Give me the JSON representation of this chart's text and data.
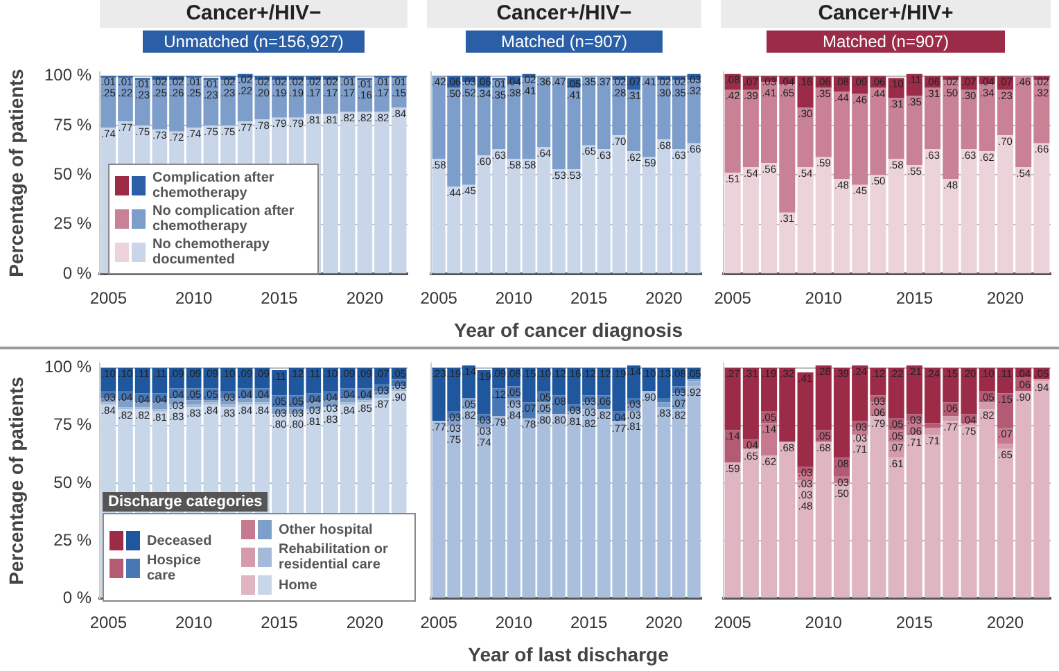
{
  "chart_data": [
    {
      "type": "bar",
      "stacked": true,
      "title": "Cancer+/HIV−",
      "subtitle": "Unmatched (n=156,927)",
      "ylabel": "Percentage of patients",
      "categories": [
        "2005",
        null,
        null,
        null,
        null,
        "2010",
        null,
        null,
        null,
        null,
        "2015",
        null,
        null,
        null,
        null,
        "2020",
        null,
        null
      ],
      "ylim": [
        0,
        1.02
      ],
      "yticks": [
        {
          "value": 0,
          "label": "0 %"
        },
        {
          "value": 0.25,
          "label": "25 %"
        },
        {
          "value": 0.5,
          "label": "50 %"
        },
        {
          "value": 0.75,
          "label": "75 %"
        },
        {
          "value": 1,
          "label": "100 %"
        }
      ],
      "grid": "y",
      "legend": "left",
      "series": [
        {
          "name": "No chemotherapy documented",
          "color": "#c9d6ea",
          "values": [
            0.74,
            0.77,
            0.75,
            0.73,
            0.72,
            0.74,
            0.75,
            0.75,
            0.77,
            0.78,
            0.79,
            0.79,
            0.81,
            0.81,
            0.82,
            0.82,
            0.82,
            0.84
          ],
          "value_labels": [
            ".74",
            ".77",
            ".75",
            ".73",
            ".72",
            ".74",
            ".75",
            ".75",
            ".77",
            ".78",
            ".79",
            ".79",
            ".81",
            ".81",
            ".82",
            ".82",
            ".82",
            ".84"
          ]
        },
        {
          "name": "No complication after chemotherapy",
          "color": "#7d9dca",
          "values": [
            0.25,
            0.22,
            0.23,
            0.25,
            0.26,
            0.25,
            0.23,
            0.23,
            0.22,
            0.2,
            0.19,
            0.19,
            0.17,
            0.17,
            0.17,
            0.16,
            0.17,
            0.15
          ],
          "value_labels": [
            ".25",
            ".22",
            ".23",
            ".25",
            ".26",
            ".25",
            ".23",
            ".23",
            ".22",
            ".20",
            ".19",
            ".19",
            ".17",
            ".17",
            ".17",
            ".16",
            ".17",
            ".15"
          ]
        },
        {
          "name": "Complication after chemotherapy",
          "color": "#2a5ea6",
          "values": [
            0.01,
            0.01,
            0.01,
            0.02,
            0.02,
            0.01,
            0.01,
            0.02,
            0.02,
            0.02,
            0.02,
            0.02,
            0.02,
            0.02,
            0.01,
            0.01,
            0.01,
            0.01
          ],
          "value_labels": [
            ".01",
            ".01",
            ".01",
            ".02",
            ".02",
            ".01",
            ".01",
            ".02",
            ".02",
            ".02",
            ".02",
            ".02",
            ".02",
            ".02",
            ".01",
            ".01",
            ".01",
            ".01"
          ]
        }
      ]
    },
    {
      "type": "bar",
      "stacked": true,
      "title": "Cancer+/HIV−",
      "subtitle": "Matched (n=907)",
      "xlabel": "Year of cancer diagnosis",
      "categories": [
        "2005",
        null,
        null,
        null,
        null,
        "2010",
        null,
        null,
        null,
        null,
        "2015",
        null,
        null,
        null,
        null,
        "2020",
        null,
        null
      ],
      "ylim": [
        0,
        1.02
      ],
      "yticks": [
        {
          "value": 0,
          "label": null
        },
        {
          "value": 0.25,
          "label": null
        },
        {
          "value": 0.5,
          "label": null
        },
        {
          "value": 0.75,
          "label": null
        },
        {
          "value": 1,
          "label": null
        }
      ],
      "grid": "y",
      "tick_labels": "x",
      "series": [
        {
          "color": "#c9d6ea",
          "values": [
            0.58,
            0.44,
            0.45,
            0.6,
            0.63,
            0.58,
            0.58,
            0.64,
            0.53,
            0.53,
            0.65,
            0.63,
            0.7,
            0.62,
            0.59,
            0.68,
            0.63,
            0.66
          ],
          "value_labels": [
            ".58",
            ".44",
            ".45",
            ".60",
            ".63",
            ".58",
            ".58",
            ".64",
            ".53",
            ".53",
            ".65",
            ".63",
            ".70",
            ".62",
            ".59",
            ".68",
            ".63",
            ".66"
          ]
        },
        {
          "color": "#7d9dca",
          "values": [
            0.42,
            0.5,
            0.52,
            0.34,
            0.35,
            0.38,
            0.41,
            0.36,
            0.47,
            0.41,
            0.35,
            0.37,
            0.28,
            0.31,
            0.41,
            0.3,
            0.35,
            0.32
          ],
          "value_labels": [
            ".42",
            ".50",
            ".52",
            ".34",
            ".35",
            ".38",
            ".41",
            ".36",
            ".47",
            ".41",
            ".35",
            ".37",
            ".28",
            ".31",
            ".41",
            ".30",
            ".35",
            ".32"
          ]
        },
        {
          "color": "#2a5ea6",
          "values": [
            0,
            0.06,
            0.03,
            0.06,
            0.01,
            0.04,
            0.02,
            0,
            0,
            0.05,
            0,
            0,
            0.02,
            0.07,
            0,
            0.02,
            0.02,
            0.03
          ],
          "value_labels": [
            null,
            ".06",
            ".03",
            ".06",
            ".01",
            ".04",
            ".02",
            null,
            null,
            ".05",
            null,
            null,
            ".02",
            ".07",
            null,
            ".02",
            ".02",
            ".03"
          ]
        }
      ]
    },
    {
      "type": "bar",
      "stacked": true,
      "title": "Cancer+/HIV+",
      "subtitle": "Matched (n=907)",
      "categories": [
        "2005",
        null,
        null,
        null,
        null,
        "2010",
        null,
        null,
        null,
        null,
        "2015",
        null,
        null,
        null,
        null,
        "2020",
        null,
        null
      ],
      "ylim": [
        0,
        1.02
      ],
      "yticks": [
        {
          "value": 0,
          "label": null
        },
        {
          "value": 0.25,
          "label": null
        },
        {
          "value": 0.5,
          "label": null
        },
        {
          "value": 0.75,
          "label": null
        },
        {
          "value": 1,
          "label": null
        }
      ],
      "grid": "y",
      "tick_labels": "x",
      "series": [
        {
          "color": "#ecd3da",
          "values": [
            0.51,
            0.54,
            0.56,
            0.31,
            0.54,
            0.59,
            0.48,
            0.45,
            0.5,
            0.58,
            0.55,
            0.63,
            0.48,
            0.63,
            0.62,
            0.7,
            0.54,
            0.66
          ],
          "value_labels": [
            ".51",
            ".54",
            ".56",
            ".31",
            ".54",
            ".59",
            ".48",
            ".45",
            ".50",
            ".58",
            ".55",
            ".63",
            ".48",
            ".63",
            ".62",
            ".70",
            ".54",
            ".66"
          ]
        },
        {
          "color": "#c98196",
          "values": [
            0.42,
            0.39,
            0.41,
            0.65,
            0.3,
            0.35,
            0.44,
            0.46,
            0.44,
            0.31,
            0.35,
            0.31,
            0.5,
            0.3,
            0.34,
            0.23,
            0.46,
            0.32
          ],
          "value_labels": [
            ".42",
            ".39",
            ".41",
            ".65",
            ".30",
            ".35",
            ".44",
            ".46",
            ".44",
            ".31",
            ".35",
            ".31",
            ".50",
            ".30",
            ".34",
            ".23",
            ".46",
            ".32"
          ]
        },
        {
          "color": "#9c2b48",
          "values": [
            0.08,
            0.07,
            0.03,
            0.04,
            0.16,
            0.06,
            0.08,
            0.09,
            0.06,
            0.1,
            0.11,
            0.06,
            0.02,
            0.07,
            0.04,
            0.07,
            0,
            0.02
          ],
          "value_labels": [
            ".08",
            ".07",
            ".03",
            ".04",
            ".16",
            ".06",
            ".08",
            ".09",
            ".06",
            ".10",
            ".11",
            ".06",
            ".02",
            ".07",
            ".04",
            ".07",
            null,
            ".02"
          ]
        }
      ]
    },
    {
      "type": "bar",
      "stacked": true,
      "ylabel": "Percentage of patients",
      "legend_title": "Discharge categories",
      "categories": [
        "2005",
        null,
        null,
        null,
        null,
        "2010",
        null,
        null,
        null,
        null,
        "2015",
        null,
        null,
        null,
        null,
        "2020",
        null,
        null
      ],
      "ylim": [
        0,
        1.02
      ],
      "yticks": [
        {
          "value": 0,
          "label": "0 %"
        },
        {
          "value": 0.25,
          "label": "25 %"
        },
        {
          "value": 0.5,
          "label": "50 %"
        },
        {
          "value": 0.75,
          "label": "75 %"
        },
        {
          "value": 1,
          "label": "100 %"
        }
      ],
      "grid": "y",
      "legend": "bottom",
      "series": [
        {
          "name": "Home",
          "color": "#c8d6ea",
          "values": [
            0.84,
            0.82,
            0.82,
            0.81,
            0.83,
            0.83,
            0.84,
            0.83,
            0.84,
            0.84,
            0.8,
            0.8,
            0.81,
            0.83,
            0.84,
            0.85,
            0.87,
            0.9
          ],
          "value_labels": [
            ".84",
            ".82",
            ".82",
            ".81",
            ".83",
            ".83",
            ".84",
            ".83",
            ".84",
            ".84",
            ".80",
            ".80",
            ".81",
            ".83",
            ".84",
            ".85",
            ".87",
            ".90"
          ]
        },
        {
          "name": "Rehabilitation or residential care",
          "color": "#a3bad9",
          "values": [
            0.01,
            0.01,
            0.01,
            0.01,
            0.01,
            0.01,
            0.01,
            0.01,
            0.01,
            0.01,
            null,
            0,
            0.01,
            0,
            0.01,
            0.01,
            0.01,
            0.01
          ],
          "value_labels": [
            null,
            null,
            null,
            null,
            null,
            null,
            null,
            null,
            null,
            null,
            null,
            null,
            null,
            null,
            null,
            null,
            null,
            null
          ]
        },
        {
          "name": "Other hospital",
          "color": "#7f9fcb",
          "values": [
            0.02,
            0.03,
            0.02,
            0.03,
            0.03,
            0.02,
            0.01,
            0.03,
            0.02,
            0.02,
            0.03,
            0.03,
            0.03,
            0.03,
            0.02,
            0.01,
            0.02,
            0.01
          ],
          "value_labels": [
            null,
            null,
            null,
            null,
            ".03",
            null,
            null,
            null,
            null,
            null,
            ".03",
            ".03",
            ".03",
            ".03",
            null,
            null,
            null,
            null
          ]
        },
        {
          "name": "Hospice care",
          "color": "#4877b6",
          "values": [
            0.03,
            0.04,
            0.04,
            0.04,
            0.04,
            0.05,
            0.05,
            0.03,
            0.04,
            0.04,
            0.05,
            0.05,
            0.04,
            0.04,
            0.04,
            0.04,
            0.03,
            0.03
          ],
          "value_labels": [
            ".03",
            ".04",
            ".04",
            ".04",
            ".04",
            ".05",
            ".05",
            ".03",
            ".04",
            ".04",
            ".05",
            ".05",
            ".04",
            ".04",
            ".04",
            ".04",
            ".03",
            ".03"
          ]
        },
        {
          "name": "Deceased",
          "color": "#1f579f",
          "values": [
            0.1,
            0.1,
            0.11,
            0.11,
            0.09,
            0.09,
            0.09,
            0.1,
            0.09,
            0.09,
            0.11,
            0.12,
            0.11,
            0.1,
            0.09,
            0.09,
            0.07,
            0.05
          ],
          "value_labels": [
            ".10",
            ".10",
            ".11",
            ".11",
            ".09",
            ".09",
            ".09",
            ".10",
            ".09",
            ".09",
            ".11",
            ".12",
            ".11",
            ".10",
            ".09",
            ".09",
            ".07",
            ".05"
          ]
        }
      ]
    },
    {
      "type": "bar",
      "stacked": true,
      "xlabel": "Year of last discharge",
      "categories": [
        "2005",
        null,
        null,
        null,
        null,
        "2010",
        null,
        null,
        null,
        null,
        "2015",
        null,
        null,
        null,
        null,
        "2020",
        null,
        null
      ],
      "ylim": [
        0,
        1.02
      ],
      "yticks": [
        {
          "value": 0,
          "label": null
        },
        {
          "value": 0.25,
          "label": null
        },
        {
          "value": 0.5,
          "label": null
        },
        {
          "value": 0.75,
          "label": null
        },
        {
          "value": 1,
          "label": null
        }
      ],
      "grid": "y",
      "tick_labels": "x",
      "series": [
        {
          "color": "#aabfdd",
          "values": [
            0.77,
            0.75,
            0.82,
            0.74,
            0.79,
            0.84,
            0.78,
            0.8,
            0.8,
            0.81,
            0.82,
            0.82,
            0.77,
            0.81,
            0.9,
            0.83,
            0.82,
            0.92
          ],
          "value_labels": [
            ".77",
            ".75",
            ".82",
            ".74",
            ".79",
            ".84",
            ".78",
            ".80",
            ".80",
            ".81",
            ".82",
            ".82",
            ".77",
            ".81",
            ".90",
            ".83",
            ".82",
            ".92"
          ]
        },
        {
          "color": "#98b1d5",
          "values": [
            0,
            0,
            0,
            null,
            0,
            0,
            0,
            0,
            0,
            0,
            0,
            0,
            0,
            0,
            0,
            0,
            0,
            0.02
          ],
          "value_labels": [
            null,
            null,
            null,
            null,
            null,
            null,
            null,
            null,
            null,
            null,
            null,
            null,
            null,
            null,
            null,
            null,
            null,
            null
          ]
        },
        {
          "color": "#7f9fcb",
          "values": [
            0,
            0.03,
            0.05,
            0.03,
            0,
            0.03,
            0,
            0.05,
            0,
            0,
            0.03,
            0,
            0,
            0.03,
            0,
            0.02,
            0.07,
            0.01
          ],
          "value_labels": [
            null,
            ".03",
            ".05",
            ".03",
            null,
            ".03",
            null,
            ".05",
            null,
            null,
            ".03",
            null,
            null,
            ".03",
            null,
            null,
            ".07",
            null
          ]
        },
        {
          "color": "#4877b6",
          "values": [
            0,
            0.03,
            0,
            0.03,
            0.12,
            0.05,
            0.07,
            0.05,
            0.08,
            0.03,
            0.03,
            0.06,
            0.04,
            0.03,
            0,
            0.02,
            0.03,
            0
          ],
          "value_labels": [
            null,
            ".03",
            null,
            ".03",
            ".12",
            ".05",
            ".07",
            ".05",
            ".08",
            ".03",
            ".03",
            ".06",
            ".04",
            ".03",
            null,
            null,
            ".03",
            null
          ]
        },
        {
          "color": "#1f579f",
          "values": [
            0.23,
            0.19,
            0.14,
            0.19,
            0.09,
            0.08,
            0.15,
            0.1,
            0.12,
            0.16,
            0.12,
            0.12,
            0.19,
            0.14,
            0.1,
            0.13,
            0.08,
            0.05
          ],
          "value_labels": [
            ".23",
            ".19",
            ".14",
            ".19",
            ".09",
            ".08",
            ".15",
            ".10",
            ".12",
            ".16",
            ".12",
            ".12",
            ".19",
            ".14",
            ".10",
            ".13",
            ".08",
            ".05"
          ]
        }
      ]
    },
    {
      "type": "bar",
      "stacked": true,
      "categories": [
        "2005",
        null,
        null,
        null,
        null,
        "2010",
        null,
        null,
        null,
        null,
        "2015",
        null,
        null,
        null,
        null,
        "2020",
        null,
        null
      ],
      "ylim": [
        0,
        1.02
      ],
      "yticks": [
        {
          "value": 0,
          "label": null
        },
        {
          "value": 0.25,
          "label": null
        },
        {
          "value": 0.5,
          "label": null
        },
        {
          "value": 0.75,
          "label": null
        },
        {
          "value": 1,
          "label": null
        }
      ],
      "grid": "y",
      "tick_labels": "x",
      "series": [
        {
          "color": "#dfb5c1",
          "values": [
            0.59,
            0.65,
            0.62,
            0.68,
            0.48,
            0.68,
            0.5,
            0.71,
            0.79,
            0.61,
            0.71,
            0.71,
            0.77,
            0.75,
            0.82,
            0.65,
            0.9,
            0.94
          ],
          "value_labels": [
            ".59",
            ".65",
            ".62",
            ".68",
            ".48",
            ".68",
            ".50",
            ".71",
            ".79",
            ".61",
            ".71",
            ".71",
            ".77",
            ".75",
            ".82",
            ".65",
            ".90",
            ".94"
          ]
        },
        {
          "color": "#d49cab",
          "values": [
            0,
            0,
            0,
            0,
            0.03,
            0,
            0,
            0,
            0,
            0.07,
            0,
            0.03,
            0.02,
            0.01,
            0.03,
            0.02,
            0,
            0.01
          ],
          "value_labels": [
            null,
            null,
            null,
            null,
            ".03",
            null,
            null,
            null,
            null,
            ".07",
            null,
            null,
            null,
            null,
            null,
            null,
            null,
            null
          ]
        },
        {
          "color": "#c77a8f",
          "values": [
            0,
            0,
            0.14,
            0,
            0.03,
            0,
            0.03,
            0.03,
            0.06,
            0.05,
            0.06,
            0,
            0,
            0,
            0,
            0.07,
            0,
            0
          ],
          "value_labels": [
            null,
            null,
            ".14",
            null,
            ".03",
            null,
            ".03",
            ".03",
            ".06",
            ".05",
            ".06",
            null,
            null,
            null,
            null,
            ".07",
            null,
            null
          ]
        },
        {
          "color": "#b45b74",
          "values": [
            0.14,
            0.04,
            0.05,
            0,
            0.03,
            0.05,
            0.08,
            0.03,
            0.03,
            0.05,
            0.03,
            0.02,
            0.06,
            0.04,
            0.05,
            0.15,
            0.06,
            0
          ],
          "value_labels": [
            ".14",
            ".04",
            ".05",
            null,
            ".03",
            ".05",
            ".08",
            ".03",
            ".03",
            ".05",
            ".03",
            null,
            ".06",
            ".04",
            ".05",
            ".15",
            ".06",
            null
          ]
        },
        {
          "color": "#9c2b48",
          "values": [
            0.27,
            0.31,
            0.19,
            0.32,
            0.41,
            0.28,
            0.39,
            0.24,
            0.12,
            0.22,
            0.21,
            0.24,
            0.15,
            0.2,
            0.1,
            0.11,
            0.04,
            0.05
          ],
          "value_labels": [
            ".27",
            ".31",
            ".19",
            ".32",
            ".41",
            ".28",
            ".39",
            ".24",
            ".12",
            ".22",
            ".21",
            ".24",
            ".15",
            ".20",
            ".10",
            ".11",
            ".04",
            ".05"
          ]
        }
      ]
    }
  ]
}
